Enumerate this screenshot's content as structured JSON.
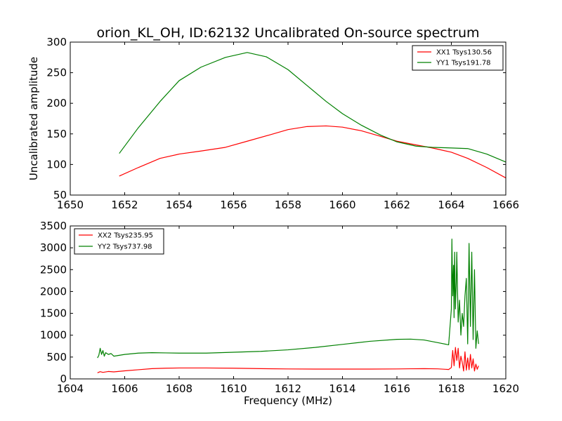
{
  "figure": {
    "background": "#ffffff"
  },
  "chart_data": [
    {
      "type": "line",
      "title": "orion_KL_OH, ID:62132 Uncalibrated On-source spectrum",
      "xlabel": "",
      "ylabel": "Uncalibrated amplitude",
      "xlim": [
        1650,
        1666
      ],
      "ylim": [
        50,
        300
      ],
      "xticks": [
        "1650",
        "1652",
        "1654",
        "1656",
        "1658",
        "1660",
        "1662",
        "1664",
        "1666"
      ],
      "yticks": [
        "50",
        "100",
        "150",
        "200",
        "250",
        "300"
      ],
      "grid": false,
      "legend_position": "top-right",
      "series": [
        {
          "name": "XX1 Tsys130.56",
          "color": "#ff0000",
          "x": [
            1651.8,
            1652.5,
            1653.3,
            1654.0,
            1654.8,
            1655.7,
            1656.5,
            1657.3,
            1658.0,
            1658.7,
            1659.4,
            1660.0,
            1660.7,
            1661.4,
            1662.0,
            1662.7,
            1663.3,
            1664.0,
            1664.6,
            1665.3,
            1666.0
          ],
          "y": [
            81,
            95,
            110,
            117,
            122,
            128,
            138,
            148,
            157,
            162,
            163,
            161,
            155,
            146,
            138,
            132,
            127,
            120,
            110,
            95,
            78
          ]
        },
        {
          "name": "YY1 Tsys191.78",
          "color": "#008000",
          "x": [
            1651.8,
            1652.5,
            1653.3,
            1654.0,
            1654.8,
            1655.7,
            1656.5,
            1657.2,
            1658.0,
            1658.7,
            1659.4,
            1660.0,
            1660.7,
            1661.4,
            1662.0,
            1662.7,
            1663.3,
            1664.0,
            1664.6,
            1665.3,
            1666.0
          ],
          "y": [
            118,
            160,
            203,
            237,
            259,
            275,
            283,
            276,
            255,
            229,
            203,
            183,
            164,
            148,
            137,
            130,
            128,
            127,
            126,
            117,
            104
          ]
        }
      ]
    },
    {
      "type": "line",
      "title": "",
      "xlabel": "Frequency (MHz)",
      "ylabel": "",
      "xlim": [
        1604,
        1620
      ],
      "ylim": [
        0,
        3500
      ],
      "xticks": [
        "1604",
        "1606",
        "1608",
        "1610",
        "1612",
        "1614",
        "1616",
        "1618",
        "1620"
      ],
      "yticks": [
        "0",
        "500",
        "1000",
        "1500",
        "2000",
        "2500",
        "3000",
        "3500"
      ],
      "grid": false,
      "legend_position": "top-left",
      "series": [
        {
          "name": "XX2 Tsys235.95",
          "color": "#ff0000",
          "x": [
            1605.0,
            1605.1,
            1605.2,
            1605.4,
            1605.6,
            1606.0,
            1606.5,
            1607.0,
            1607.5,
            1608.0,
            1609.0,
            1610.0,
            1611.0,
            1612.0,
            1613.0,
            1614.0,
            1615.0,
            1616.0,
            1616.5,
            1617.0,
            1617.5,
            1617.9,
            1618.0,
            1618.05,
            1618.1,
            1618.15,
            1618.2,
            1618.25,
            1618.3,
            1618.35,
            1618.4,
            1618.45,
            1618.5,
            1618.55,
            1618.6,
            1618.65,
            1618.7,
            1618.75,
            1618.8,
            1618.85,
            1618.9,
            1618.95,
            1619.0
          ],
          "y": [
            140,
            165,
            150,
            170,
            160,
            185,
            210,
            235,
            245,
            250,
            250,
            245,
            235,
            228,
            225,
            225,
            225,
            228,
            232,
            235,
            230,
            215,
            260,
            650,
            300,
            720,
            420,
            700,
            250,
            520,
            380,
            180,
            620,
            200,
            480,
            210,
            560,
            250,
            460,
            180,
            340,
            220,
            300
          ]
        },
        {
          "name": "YY2 Tsys737.98",
          "color": "#008000",
          "x": [
            1605.0,
            1605.05,
            1605.1,
            1605.15,
            1605.2,
            1605.25,
            1605.3,
            1605.4,
            1605.5,
            1605.6,
            1605.8,
            1606.0,
            1606.5,
            1607.0,
            1607.5,
            1608.0,
            1609.0,
            1610.0,
            1611.0,
            1612.0,
            1613.0,
            1614.0,
            1615.0,
            1616.0,
            1616.5,
            1617.0,
            1617.5,
            1617.9,
            1618.0,
            1618.02,
            1618.05,
            1618.08,
            1618.1,
            1618.12,
            1618.15,
            1618.18,
            1618.2,
            1618.25,
            1618.3,
            1618.35,
            1618.4,
            1618.45,
            1618.5,
            1618.55,
            1618.6,
            1618.65,
            1618.7,
            1618.75,
            1618.8,
            1618.85,
            1618.9,
            1618.95,
            1619.0
          ],
          "y": [
            480,
            540,
            700,
            560,
            650,
            520,
            600,
            560,
            580,
            520,
            540,
            560,
            590,
            600,
            595,
            590,
            590,
            610,
            630,
            665,
            720,
            790,
            860,
            905,
            910,
            890,
            830,
            780,
            1600,
            3200,
            1900,
            2600,
            1400,
            2900,
            1600,
            2200,
            2900,
            1300,
            1800,
            1000,
            1500,
            1200,
            1900,
            2300,
            800,
            3100,
            1200,
            2900,
            900,
            2500,
            700,
            1100,
            800
          ]
        }
      ]
    }
  ]
}
